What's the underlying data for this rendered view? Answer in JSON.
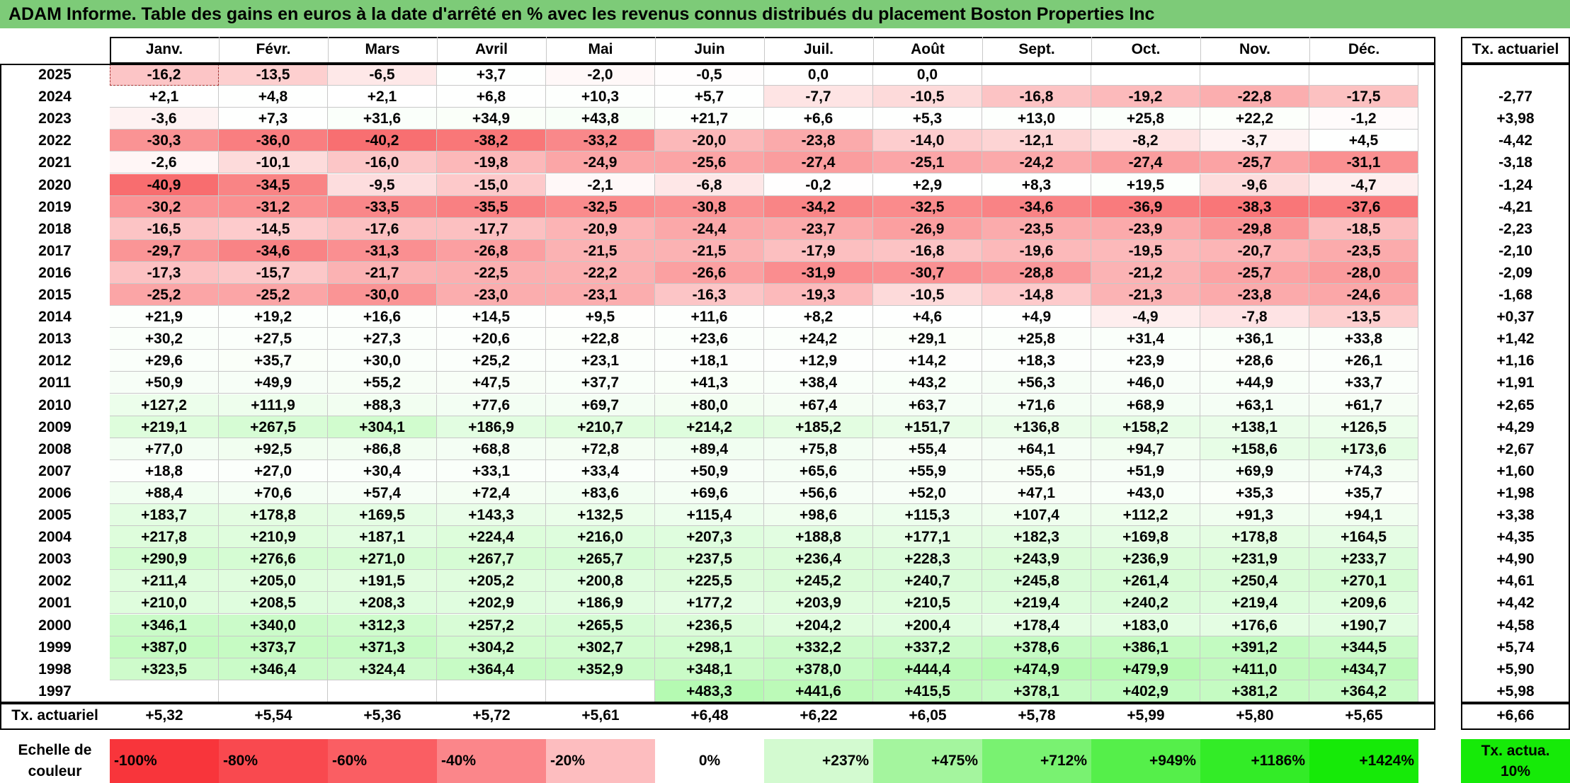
{
  "title": "ADAM Informe. Table des gains en euros à la date d'arrêté en % avec les revenus connus distribués du placement Boston Properties Inc",
  "chart_data": {
    "type": "table",
    "months": [
      "Janv.",
      "Févr.",
      "Mars",
      "Avril",
      "Mai",
      "Juin",
      "Juil.",
      "Août",
      "Sept.",
      "Oct.",
      "Nov.",
      "Déc."
    ],
    "rate_header": "Tx. actuariel",
    "rows": [
      {
        "year": "2025",
        "values": [
          "-16,2",
          "-13,5",
          "-6,5",
          "+3,7",
          "-2,0",
          "-0,5",
          "0,0",
          "0,0",
          "",
          "",
          "",
          ""
        ],
        "rate": ""
      },
      {
        "year": "2024",
        "values": [
          "+2,1",
          "+4,8",
          "+2,1",
          "+6,8",
          "+10,3",
          "+5,7",
          "-7,7",
          "-10,5",
          "-16,8",
          "-19,2",
          "-22,8",
          "-17,5"
        ],
        "rate": "-2,77"
      },
      {
        "year": "2023",
        "values": [
          "-3,6",
          "+7,3",
          "+31,6",
          "+34,9",
          "+43,8",
          "+21,7",
          "+6,6",
          "+5,3",
          "+13,0",
          "+25,8",
          "+22,2",
          "-1,2"
        ],
        "rate": "+3,98"
      },
      {
        "year": "2022",
        "values": [
          "-30,3",
          "-36,0",
          "-40,2",
          "-38,2",
          "-33,2",
          "-20,0",
          "-23,8",
          "-14,0",
          "-12,1",
          "-8,2",
          "-3,7",
          "+4,5"
        ],
        "rate": "-4,42"
      },
      {
        "year": "2021",
        "values": [
          "-2,6",
          "-10,1",
          "-16,0",
          "-19,8",
          "-24,9",
          "-25,6",
          "-27,4",
          "-25,1",
          "-24,2",
          "-27,4",
          "-25,7",
          "-31,1"
        ],
        "rate": "-3,18"
      },
      {
        "year": "2020",
        "values": [
          "-40,9",
          "-34,5",
          "-9,5",
          "-15,0",
          "-2,1",
          "-6,8",
          "-0,2",
          "+2,9",
          "+8,3",
          "+19,5",
          "-9,6",
          "-4,7"
        ],
        "rate": "-1,24"
      },
      {
        "year": "2019",
        "values": [
          "-30,2",
          "-31,2",
          "-33,5",
          "-35,5",
          "-32,5",
          "-30,8",
          "-34,2",
          "-32,5",
          "-34,6",
          "-36,9",
          "-38,3",
          "-37,6"
        ],
        "rate": "-4,21"
      },
      {
        "year": "2018",
        "values": [
          "-16,5",
          "-14,5",
          "-17,6",
          "-17,7",
          "-20,9",
          "-24,4",
          "-23,7",
          "-26,9",
          "-23,5",
          "-23,9",
          "-29,8",
          "-18,5"
        ],
        "rate": "-2,23"
      },
      {
        "year": "2017",
        "values": [
          "-29,7",
          "-34,6",
          "-31,3",
          "-26,8",
          "-21,5",
          "-21,5",
          "-17,9",
          "-16,8",
          "-19,6",
          "-19,5",
          "-20,7",
          "-23,5"
        ],
        "rate": "-2,10"
      },
      {
        "year": "2016",
        "values": [
          "-17,3",
          "-15,7",
          "-21,7",
          "-22,5",
          "-22,2",
          "-26,6",
          "-31,9",
          "-30,7",
          "-28,8",
          "-21,2",
          "-25,7",
          "-28,0"
        ],
        "rate": "-2,09"
      },
      {
        "year": "2015",
        "values": [
          "-25,2",
          "-25,2",
          "-30,0",
          "-23,0",
          "-23,1",
          "-16,3",
          "-19,3",
          "-10,5",
          "-14,8",
          "-21,3",
          "-23,8",
          "-24,6"
        ],
        "rate": "-1,68"
      },
      {
        "year": "2014",
        "values": [
          "+21,9",
          "+19,2",
          "+16,6",
          "+14,5",
          "+9,5",
          "+11,6",
          "+8,2",
          "+4,6",
          "+4,9",
          "-4,9",
          "-7,8",
          "-13,5"
        ],
        "rate": "+0,37"
      },
      {
        "year": "2013",
        "values": [
          "+30,2",
          "+27,5",
          "+27,3",
          "+20,6",
          "+22,8",
          "+23,6",
          "+24,2",
          "+29,1",
          "+25,8",
          "+31,4",
          "+36,1",
          "+33,8"
        ],
        "rate": "+1,42"
      },
      {
        "year": "2012",
        "values": [
          "+29,6",
          "+35,7",
          "+30,0",
          "+25,2",
          "+23,1",
          "+18,1",
          "+12,9",
          "+14,2",
          "+18,3",
          "+23,9",
          "+28,6",
          "+26,1"
        ],
        "rate": "+1,16"
      },
      {
        "year": "2011",
        "values": [
          "+50,9",
          "+49,9",
          "+55,2",
          "+47,5",
          "+37,7",
          "+41,3",
          "+38,4",
          "+43,2",
          "+56,3",
          "+46,0",
          "+44,9",
          "+33,7"
        ],
        "rate": "+1,91"
      },
      {
        "year": "2010",
        "values": [
          "+127,2",
          "+111,9",
          "+88,3",
          "+77,6",
          "+69,7",
          "+80,0",
          "+67,4",
          "+63,7",
          "+71,6",
          "+68,9",
          "+63,1",
          "+61,7"
        ],
        "rate": "+2,65"
      },
      {
        "year": "2009",
        "values": [
          "+219,1",
          "+267,5",
          "+304,1",
          "+186,9",
          "+210,7",
          "+214,2",
          "+185,2",
          "+151,7",
          "+136,8",
          "+158,2",
          "+138,1",
          "+126,5"
        ],
        "rate": "+4,29"
      },
      {
        "year": "2008",
        "values": [
          "+77,0",
          "+92,5",
          "+86,8",
          "+68,8",
          "+72,8",
          "+89,4",
          "+75,8",
          "+55,4",
          "+64,1",
          "+94,7",
          "+158,6",
          "+173,6"
        ],
        "rate": "+2,67"
      },
      {
        "year": "2007",
        "values": [
          "+18,8",
          "+27,0",
          "+30,4",
          "+33,1",
          "+33,4",
          "+50,9",
          "+65,6",
          "+55,9",
          "+55,6",
          "+51,9",
          "+69,9",
          "+74,3"
        ],
        "rate": "+1,60"
      },
      {
        "year": "2006",
        "values": [
          "+88,4",
          "+70,6",
          "+57,4",
          "+72,4",
          "+83,6",
          "+69,6",
          "+56,6",
          "+52,0",
          "+47,1",
          "+43,0",
          "+35,3",
          "+35,7"
        ],
        "rate": "+1,98"
      },
      {
        "year": "2005",
        "values": [
          "+183,7",
          "+178,8",
          "+169,5",
          "+143,3",
          "+132,5",
          "+115,4",
          "+98,6",
          "+115,3",
          "+107,4",
          "+112,2",
          "+91,3",
          "+94,1"
        ],
        "rate": "+3,38"
      },
      {
        "year": "2004",
        "values": [
          "+217,8",
          "+210,9",
          "+187,1",
          "+224,4",
          "+216,0",
          "+207,3",
          "+188,8",
          "+177,1",
          "+182,3",
          "+169,8",
          "+178,8",
          "+164,5"
        ],
        "rate": "+4,35"
      },
      {
        "year": "2003",
        "values": [
          "+290,9",
          "+276,6",
          "+271,0",
          "+267,7",
          "+265,7",
          "+237,5",
          "+236,4",
          "+228,3",
          "+243,9",
          "+236,9",
          "+231,9",
          "+233,7"
        ],
        "rate": "+4,90"
      },
      {
        "year": "2002",
        "values": [
          "+211,4",
          "+205,0",
          "+191,5",
          "+205,2",
          "+200,8",
          "+225,5",
          "+245,2",
          "+240,7",
          "+245,8",
          "+261,4",
          "+250,4",
          "+270,1"
        ],
        "rate": "+4,61"
      },
      {
        "year": "2001",
        "values": [
          "+210,0",
          "+208,5",
          "+208,3",
          "+202,9",
          "+186,9",
          "+177,2",
          "+203,9",
          "+210,5",
          "+219,4",
          "+240,2",
          "+219,4",
          "+209,6"
        ],
        "rate": "+4,42"
      },
      {
        "year": "2000",
        "values": [
          "+346,1",
          "+340,0",
          "+312,3",
          "+257,2",
          "+265,5",
          "+236,5",
          "+204,2",
          "+200,4",
          "+178,4",
          "+183,0",
          "+176,6",
          "+190,7"
        ],
        "rate": "+4,58"
      },
      {
        "year": "1999",
        "values": [
          "+387,0",
          "+373,7",
          "+371,3",
          "+304,2",
          "+302,7",
          "+298,1",
          "+332,2",
          "+337,2",
          "+378,6",
          "+386,1",
          "+391,2",
          "+344,5"
        ],
        "rate": "+5,74"
      },
      {
        "year": "1998",
        "values": [
          "+323,5",
          "+346,4",
          "+324,4",
          "+364,4",
          "+352,9",
          "+348,1",
          "+378,0",
          "+444,4",
          "+474,9",
          "+479,9",
          "+411,0",
          "+434,7"
        ],
        "rate": "+5,90"
      },
      {
        "year": "1997",
        "values": [
          "",
          "",
          "",
          "",
          "",
          "+483,3",
          "+441,6",
          "+415,5",
          "+378,1",
          "+402,9",
          "+381,2",
          "+364,2"
        ],
        "rate": "+5,98"
      }
    ],
    "footer": {
      "label": "Tx. actuariel",
      "values": [
        "+5,32",
        "+5,54",
        "+5,36",
        "+5,72",
        "+5,61",
        "+6,48",
        "+6,22",
        "+6,05",
        "+5,78",
        "+5,99",
        "+5,80",
        "+5,65"
      ],
      "rate": "+6,66"
    },
    "scale": {
      "label": "Echelle de couleur",
      "steps": [
        {
          "text": "-100%",
          "color": "#f8353b"
        },
        {
          "text": "-80%",
          "color": "#f9494f"
        },
        {
          "text": "-60%",
          "color": "#fa5e63"
        },
        {
          "text": "-40%",
          "color": "#fb868a"
        },
        {
          "text": "-20%",
          "color": "#fdbdbf"
        },
        {
          "text": "0%",
          "color": "#ffffff"
        },
        {
          "text": "+237%",
          "color": "#d3fad0"
        },
        {
          "text": "+475%",
          "color": "#a4f59e"
        },
        {
          "text": "+712%",
          "color": "#79f271"
        },
        {
          "text": "+949%",
          "color": "#55ef4a"
        },
        {
          "text": "+1186%",
          "color": "#33ec27"
        },
        {
          "text": "+1424%",
          "color": "#16ea08"
        }
      ],
      "rate_box": {
        "text": "Tx. actua. 10%",
        "color": "#16ea08"
      }
    },
    "colors": {
      "title_bar": "#7dcb78",
      "negative_max": "#f8696b",
      "positive_max": "#63be7b"
    }
  }
}
